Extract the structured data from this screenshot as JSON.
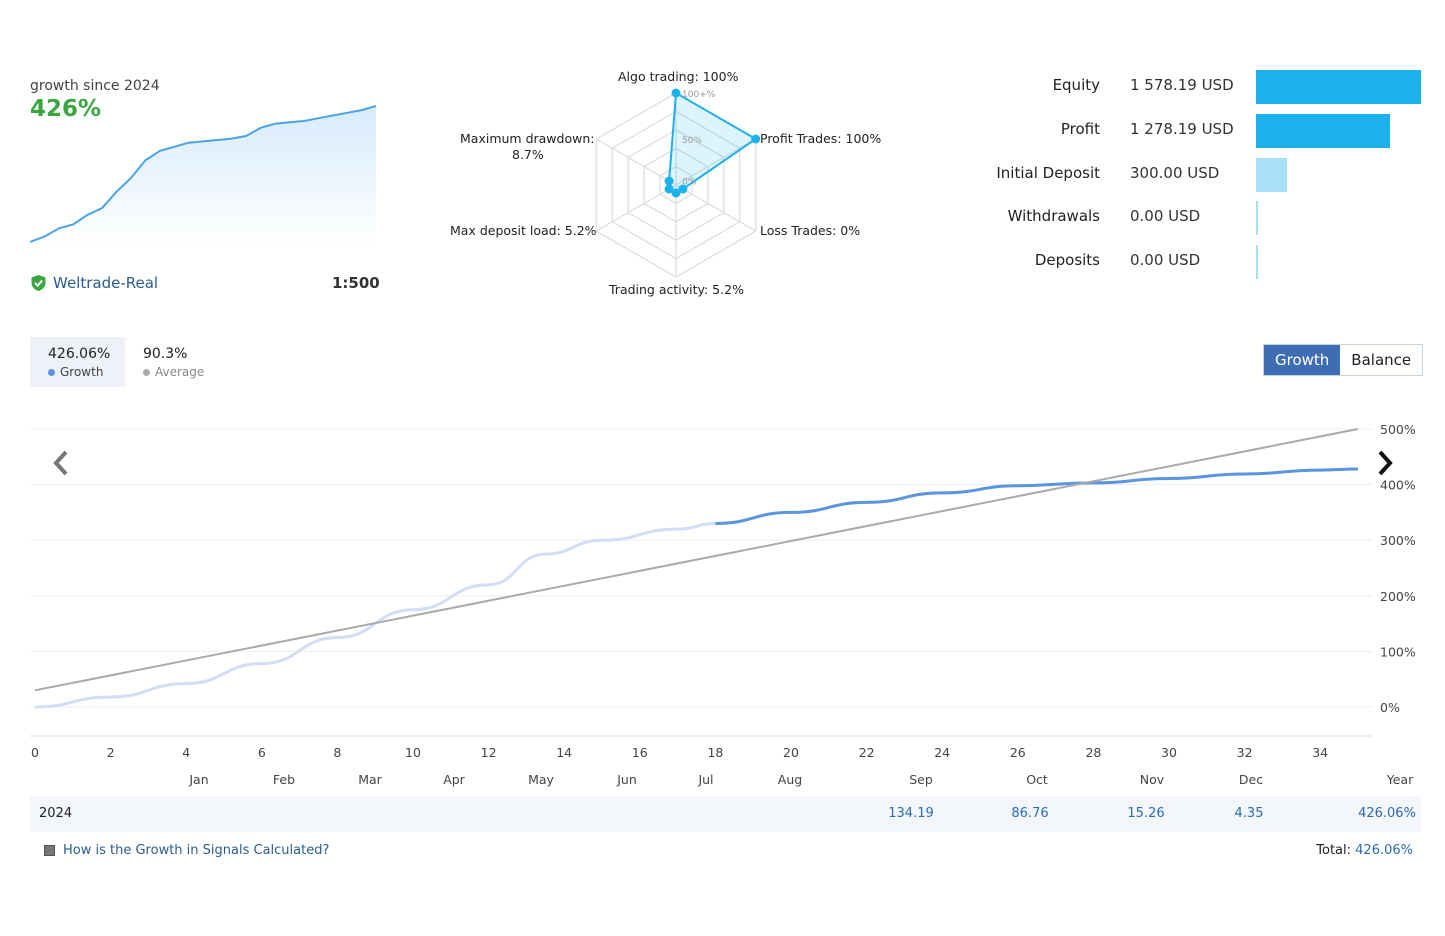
{
  "summary": {
    "growth_since_label": "growth since 2024",
    "growth_value": "426%",
    "broker": "Weltrade-Real",
    "leverage": "1:500",
    "sparkline": [
      0.0,
      0.04,
      0.1,
      0.13,
      0.2,
      0.25,
      0.37,
      0.47,
      0.6,
      0.67,
      0.7,
      0.73,
      0.74,
      0.75,
      0.76,
      0.78,
      0.84,
      0.87,
      0.88,
      0.89,
      0.91,
      0.93,
      0.95,
      0.97,
      1.0
    ]
  },
  "radar": {
    "labels": {
      "algo": "Algo trading: 100%",
      "profit": "Profit Trades: 100%",
      "loss": "Loss Trades: 0%",
      "activity": "Trading activity: 5.2%",
      "deposit_load": "Max deposit load: 5.2%",
      "drawdown_line1": "Maximum drawdown:",
      "drawdown_line2": "8.7%"
    },
    "scale_labels": [
      "100+%",
      "50%",
      "0%"
    ],
    "values": [
      1.0,
      1.0,
      0.0,
      0.052,
      0.052,
      0.087
    ]
  },
  "stats": [
    {
      "label": "Equity",
      "value": "1 578.19 USD",
      "bar_fraction": 1.0,
      "color": "#1cb2ee"
    },
    {
      "label": "Profit",
      "value": "1 278.19 USD",
      "bar_fraction": 0.81,
      "color": "#1cb2ee"
    },
    {
      "label": "Initial Deposit",
      "value": "300.00 USD",
      "bar_fraction": 0.19,
      "color": "#a8e0f8"
    },
    {
      "label": "Withdrawals",
      "value": "0.00 USD",
      "bar_fraction": 0.0,
      "color": "#a8e0f8"
    },
    {
      "label": "Deposits",
      "value": "0.00 USD",
      "bar_fraction": 0.0,
      "color": "#a8e0f8"
    }
  ],
  "tabs": {
    "growth_value": "426.06%",
    "growth_label": "Growth",
    "average_value": "90.3%",
    "average_label": "Average"
  },
  "toggle": {
    "growth": "Growth",
    "balance": "Balance"
  },
  "chart_data": {
    "type": "line",
    "x_ticks": [
      0,
      2,
      4,
      6,
      8,
      10,
      12,
      14,
      16,
      18,
      20,
      22,
      24,
      26,
      28,
      30,
      32,
      34
    ],
    "xlim": [
      0,
      35
    ],
    "y_ticks": [
      "500%",
      "400%",
      "300%",
      "200%",
      "100%",
      "0%"
    ],
    "ylim": [
      0,
      500
    ],
    "series": [
      {
        "color": "#d3ddf5",
        "x": [
          0,
          2,
          4,
          6,
          8,
          10,
          12,
          13.5,
          15,
          17,
          18
        ],
        "y": [
          0,
          18,
          42,
          78,
          125,
          175,
          220,
          275,
          300,
          320,
          330
        ]
      },
      {
        "color": "#5a95e0",
        "x": [
          18,
          20,
          22,
          24,
          26,
          28,
          30,
          32,
          34,
          35
        ],
        "y": [
          330,
          350,
          368,
          385,
          398,
          403,
          411,
          419,
          426,
          428
        ]
      },
      {
        "color": "#aaaaaa",
        "x": [
          0,
          35
        ],
        "y": [
          30,
          500
        ]
      }
    ],
    "month_labels": [
      "Jan",
      "Feb",
      "Mar",
      "Apr",
      "May",
      "Jun",
      "Jul",
      "Aug",
      "Sep",
      "Oct",
      "Nov",
      "Dec",
      "Year"
    ],
    "year_row": {
      "year": "2024",
      "values": [
        "",
        "",
        "",
        "",
        "",
        "",
        "",
        "",
        "134.19",
        "86.76",
        "15.26",
        "4.35",
        "426.06%"
      ]
    }
  },
  "footer": {
    "link": "How is the Growth in Signals Calculated?",
    "total_label": "Total:",
    "total_value": "426.06%"
  }
}
